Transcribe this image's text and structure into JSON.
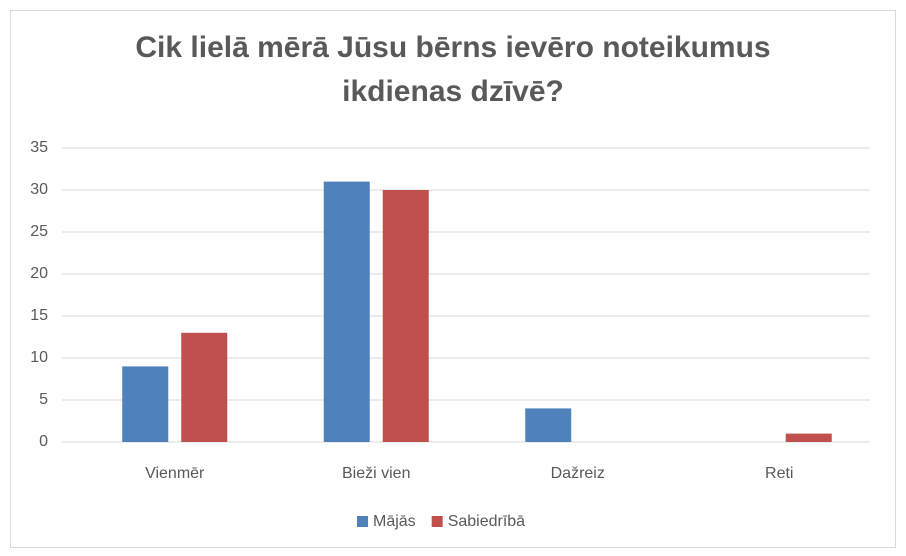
{
  "chart_data": {
    "type": "bar",
    "title": "Cik lielā mērā Jūsu bērns ievēro noteikumus ikdienas dzīvē?",
    "categories": [
      "Vienmēr",
      "Bieži vien",
      "Dažreiz",
      "Reti"
    ],
    "series": [
      {
        "name": "Mājās",
        "color": "#4f81bd",
        "values": [
          9,
          31,
          4,
          0
        ]
      },
      {
        "name": "Sabiedrībā",
        "color": "#c0504d",
        "values": [
          13,
          30,
          0,
          1
        ]
      }
    ],
    "ylim": [
      0,
      35
    ],
    "yticks": [
      0,
      5,
      10,
      15,
      20,
      25,
      30,
      35
    ],
    "grid": true,
    "legend": "bottom"
  }
}
